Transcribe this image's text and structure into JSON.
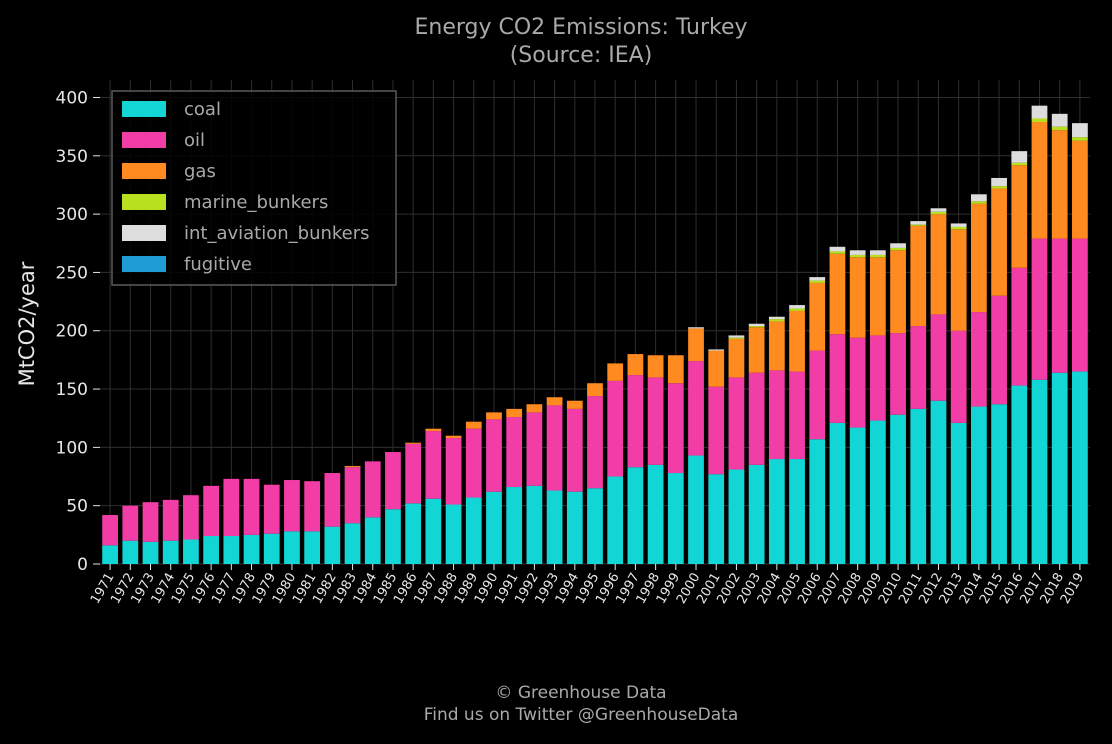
{
  "chart_data": {
    "type": "bar",
    "stacked": true,
    "title": "Energy CO2 Emissions: Turkey",
    "subtitle": "(Source: IEA)",
    "xlabel": "",
    "ylabel": "MtCO2/year",
    "ylim": [
      0,
      415
    ],
    "yticks": [
      0,
      50,
      100,
      150,
      200,
      250,
      300,
      350,
      400
    ],
    "grid": true,
    "legend_position": "top-left",
    "categories": [
      "1971",
      "1972",
      "1973",
      "1974",
      "1975",
      "1976",
      "1977",
      "1978",
      "1979",
      "1980",
      "1981",
      "1982",
      "1983",
      "1984",
      "1985",
      "1986",
      "1987",
      "1988",
      "1989",
      "1990",
      "1991",
      "1992",
      "1993",
      "1994",
      "1995",
      "1996",
      "1997",
      "1998",
      "1999",
      "2000",
      "2001",
      "2002",
      "2003",
      "2004",
      "2005",
      "2006",
      "2007",
      "2008",
      "2009",
      "2010",
      "2011",
      "2012",
      "2013",
      "2014",
      "2015",
      "2016",
      "2017",
      "2018",
      "2019"
    ],
    "series": [
      {
        "name": "coal",
        "color": "#12d6d6",
        "values": [
          16,
          20,
          19,
          20,
          21,
          24,
          24,
          25,
          26,
          28,
          28,
          32,
          35,
          40,
          47,
          52,
          56,
          51,
          57,
          62,
          66,
          67,
          63,
          62,
          65,
          75,
          83,
          85,
          78,
          93,
          77,
          81,
          85,
          90,
          90,
          107,
          121,
          117,
          123,
          128,
          133,
          140,
          121,
          135,
          137,
          153,
          158,
          164,
          165
        ]
      },
      {
        "name": "oil",
        "color": "#f23da6",
        "values": [
          26,
          30,
          34,
          35,
          38,
          43,
          49,
          48,
          42,
          44,
          43,
          46,
          48,
          48,
          49,
          51,
          58,
          57,
          59,
          62,
          60,
          63,
          73,
          71,
          79,
          82,
          79,
          75,
          77,
          81,
          75,
          79,
          79,
          76,
          75,
          76,
          76,
          77,
          73,
          70,
          71,
          74,
          79,
          81,
          93,
          101,
          121,
          115,
          114
        ]
      },
      {
        "name": "gas",
        "color": "#ff8a1f",
        "values": [
          0,
          0,
          0,
          0,
          0,
          0,
          0,
          0,
          0,
          0,
          0,
          0,
          1,
          0,
          0,
          1,
          2,
          2,
          6,
          6,
          7,
          7,
          7,
          7,
          11,
          15,
          18,
          19,
          24,
          28,
          31,
          33,
          39,
          42,
          52,
          58,
          69,
          69,
          67,
          71,
          86,
          86,
          87,
          93,
          92,
          88,
          100,
          93,
          84
        ]
      },
      {
        "name": "marine_bunkers",
        "color": "#b8e01f",
        "values": [
          0,
          0,
          0,
          0,
          0,
          0,
          0,
          0,
          0,
          0,
          0,
          0,
          0,
          0,
          0,
          0,
          0,
          0,
          0,
          0,
          0,
          0,
          0,
          0,
          0,
          0,
          0,
          0,
          0,
          0,
          0,
          1,
          1,
          2,
          2,
          2,
          2,
          2,
          2,
          2,
          1,
          2,
          2,
          2,
          2,
          2,
          3,
          3,
          3
        ]
      },
      {
        "name": "int_aviation_bunkers",
        "color": "#dddddd",
        "values": [
          0,
          0,
          0,
          0,
          0,
          0,
          0,
          0,
          0,
          0,
          0,
          0,
          0,
          0,
          0,
          0,
          0,
          0,
          0,
          0,
          0,
          0,
          0,
          0,
          0,
          0,
          0,
          0,
          0,
          1,
          1,
          2,
          2,
          2,
          3,
          3,
          4,
          4,
          4,
          4,
          3,
          3,
          3,
          6,
          7,
          10,
          11,
          11,
          12
        ]
      },
      {
        "name": "fugitive",
        "color": "#1f9bd6",
        "values": [
          0,
          0,
          0,
          0,
          0,
          0,
          0,
          0,
          0,
          0,
          0,
          0,
          0,
          0,
          0,
          0,
          0,
          0,
          0,
          0,
          0,
          0,
          0,
          0,
          0,
          0,
          0,
          0,
          0,
          0,
          0,
          0,
          0,
          0,
          0,
          0,
          0,
          0,
          0,
          0,
          0,
          0,
          0,
          0,
          0,
          0,
          0,
          0,
          0
        ]
      }
    ]
  },
  "footer": {
    "line1": "© Greenhouse Data",
    "line2": "Find us on Twitter @GreenhouseData"
  },
  "colors": {
    "background": "#000000",
    "grid": "#2e2e2e",
    "text_muted": "#a9a9a9",
    "text": "#e6e6e6"
  }
}
